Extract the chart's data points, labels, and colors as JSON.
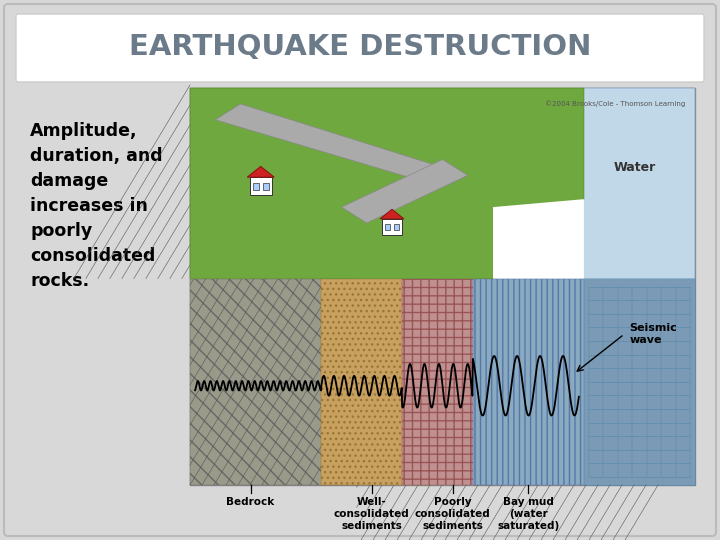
{
  "title": "EARTHQUAKE DESTRUCTION",
  "title_color": "#6b7b8a",
  "title_fontsize": 21,
  "body_text": "Amplitude,\nduration, and\ndamage\nincreases in\npoorly\nconsolidated\nrocks.",
  "body_fontsize": 12.5,
  "body_color": "#000000",
  "bg_color": "#d8d8d8",
  "card_color": "#ffffff",
  "bedrock_color": "#9a9a8a",
  "well_consol_color": "#c8a060",
  "poorly_consol_color": "#c09090",
  "bay_mud_color": "#8aaac0",
  "water_color": "#c0d8e8",
  "green_color": "#70a840",
  "road_color": "#aaaaaa",
  "wave_color": "#000000",
  "label_fontsize": 8.5,
  "water_label": "Water",
  "seismic_label": "Seismic\nwave",
  "bedrock_label": "Bedrock",
  "well_label": "Well-\nconsolidated\nsediments",
  "poorly_label": "Poorly\nconsolidated\nsediments",
  "bay_label": "Bay mud\n(water\nsaturated)"
}
